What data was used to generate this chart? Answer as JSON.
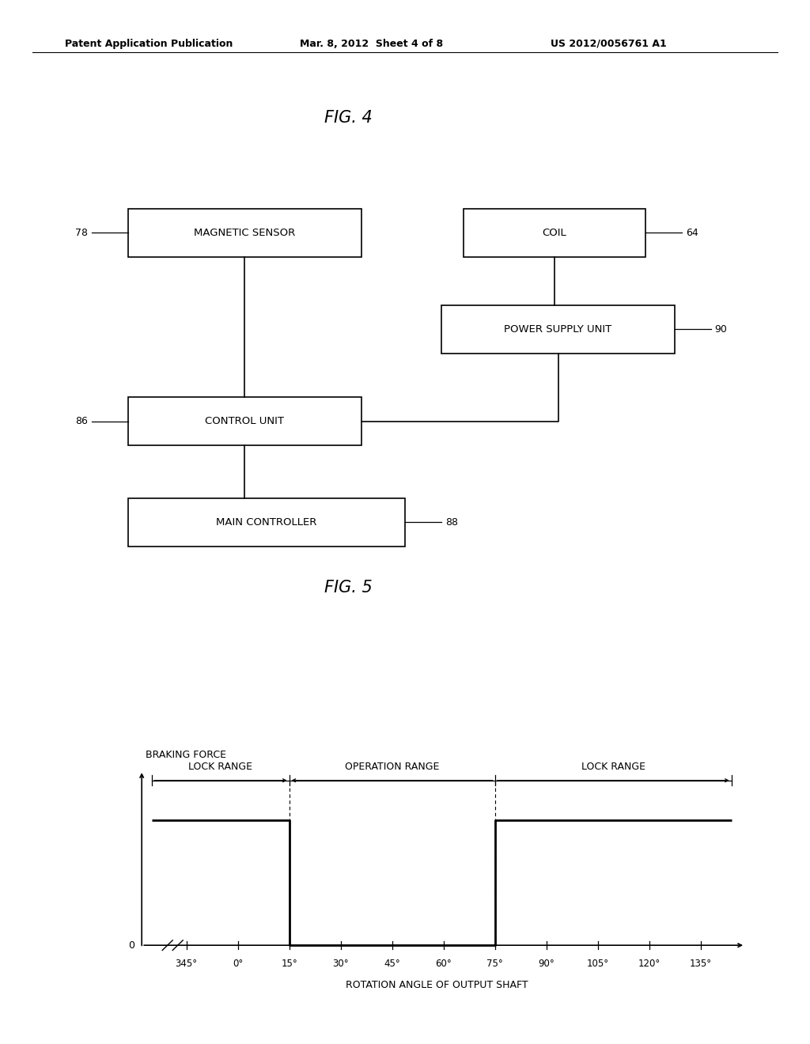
{
  "bg_color": "#ffffff",
  "text_color": "#000000",
  "header_left": "Patent Application Publication",
  "header_center": "Mar. 8, 2012  Sheet 4 of 8",
  "header_right": "US 2012/0056761 A1",
  "fig4_title": "FIG. 4",
  "fig5_title": "FIG. 5",
  "fig5_xlabel": "ROTATION ANGLE OF OUTPUT SHAFT",
  "fig5_ylabel": "BRAKING FORCE",
  "tick_labels": [
    "345°",
    "0°",
    "15°",
    "30°",
    "45°",
    "60°",
    "75°",
    "90°",
    "105°",
    "120°",
    "135°"
  ],
  "tick_positions": [
    -15,
    0,
    15,
    30,
    45,
    60,
    75,
    90,
    105,
    120,
    135
  ],
  "lock_range_left_label": "LOCK RANGE",
  "operation_range_label": "OPERATION RANGE",
  "lock_range_right_label": "LOCK RANGE"
}
